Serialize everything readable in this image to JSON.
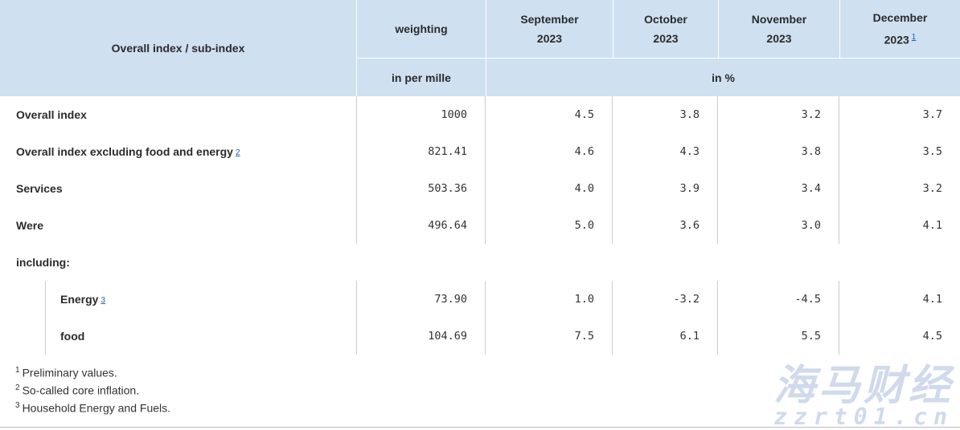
{
  "header": {
    "col0": "Overall index / sub-index",
    "weighting": "weighting",
    "unit_weight": "in per mille",
    "unit_pct": "in %",
    "months": [
      {
        "m": "September",
        "y": "2023"
      },
      {
        "m": "October",
        "y": "2023"
      },
      {
        "m": "November",
        "y": "2023"
      },
      {
        "m": "December",
        "y": "2023",
        "fn": "1"
      }
    ]
  },
  "rows": [
    {
      "label": "Overall index",
      "weight": "1000",
      "values": [
        "4.5",
        "3.8",
        "3.2",
        "3.7"
      ]
    },
    {
      "label": "Overall index excluding food and energy",
      "fn": "2",
      "weight": "821.41",
      "values": [
        "4.6",
        "4.3",
        "3.8",
        "3.5"
      ]
    },
    {
      "label": "Services",
      "weight": "503.36",
      "values": [
        "4.0",
        "3.9",
        "3.4",
        "3.2"
      ]
    },
    {
      "label": "Were",
      "weight": "496.64",
      "values": [
        "5.0",
        "3.6",
        "3.0",
        "4.1"
      ]
    }
  ],
  "including": "including:",
  "subrows": [
    {
      "label": "Energy",
      "fn": "3",
      "weight": "73.90",
      "values": [
        "1.0",
        "-3.2",
        "-4.5",
        "4.1"
      ]
    },
    {
      "label": "food",
      "weight": "104.69",
      "values": [
        "7.5",
        "6.1",
        "5.5",
        "4.5"
      ]
    }
  ],
  "footnotes": [
    {
      "n": "1",
      "text": "Preliminary values."
    },
    {
      "n": "2",
      "text": "So-called core inflation."
    },
    {
      "n": "3",
      "text": "Household Energy and Fuels."
    }
  ],
  "watermark": {
    "line1": "海马财经",
    "line2": "zzrt01.cn"
  }
}
